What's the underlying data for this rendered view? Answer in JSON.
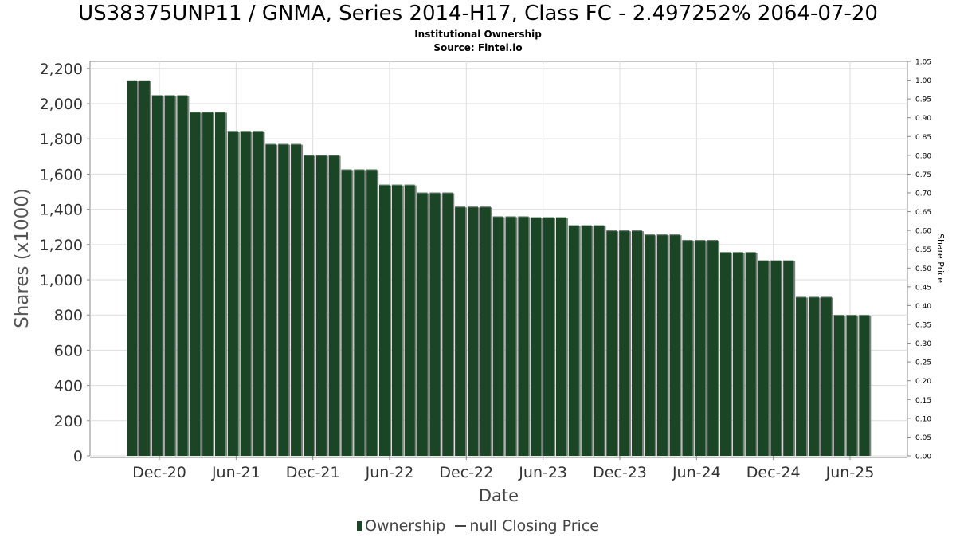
{
  "title": "US38375UNP11 / GNMA, Series 2014-H17, Class FC - 2.497252% 2064-07-20",
  "subtitle": "Institutional Ownership",
  "source": "Source: Fintel.io",
  "legend": {
    "ownership_label": "Ownership",
    "price_label": "null Closing Price"
  },
  "colors": {
    "bar": "#1a4626",
    "bar_shadow": "#808080",
    "grid": "#dddddd",
    "axis": "#888888"
  },
  "chart_data": {
    "type": "bar",
    "xlabel": "Date",
    "ylabel": "Shares (x1000)",
    "y2label": "Share Price",
    "ylim": [
      0,
      2240
    ],
    "y2lim": [
      0,
      1.05
    ],
    "yticks": [
      "0",
      "200",
      "400",
      "600",
      "800",
      "1,000",
      "1,200",
      "1,400",
      "1,600",
      "1,800",
      "2,000",
      "2,200"
    ],
    "ytick_values": [
      0,
      200,
      400,
      600,
      800,
      1000,
      1200,
      1400,
      1600,
      1800,
      2000,
      2200
    ],
    "y2ticks": [
      "0.00",
      "0.05",
      "0.10",
      "0.15",
      "0.20",
      "0.25",
      "0.30",
      "0.35",
      "0.40",
      "0.45",
      "0.50",
      "0.55",
      "0.60",
      "0.65",
      "0.70",
      "0.75",
      "0.80",
      "0.85",
      "0.90",
      "0.95",
      "1.00",
      "1.05"
    ],
    "xticks": [
      "Dec-20",
      "Jun-21",
      "Dec-21",
      "Jun-22",
      "Dec-22",
      "Jun-23",
      "Dec-23",
      "Jun-24",
      "Dec-24",
      "Jun-25"
    ],
    "grid": true,
    "legend_position": "bottom",
    "series": [
      {
        "name": "Ownership",
        "values": [
          2132,
          2132,
          2048,
          2048,
          2048,
          1953,
          1953,
          1953,
          1845,
          1845,
          1845,
          1771,
          1771,
          1771,
          1708,
          1708,
          1708,
          1627,
          1627,
          1627,
          1540,
          1540,
          1540,
          1495,
          1495,
          1495,
          1415,
          1415,
          1415,
          1360,
          1360,
          1360,
          1355,
          1355,
          1355,
          1310,
          1310,
          1310,
          1280,
          1280,
          1280,
          1257,
          1257,
          1257,
          1226,
          1226,
          1226,
          1157,
          1157,
          1157,
          1110,
          1110,
          1110,
          903,
          903,
          903,
          800,
          800,
          800
        ]
      }
    ]
  }
}
